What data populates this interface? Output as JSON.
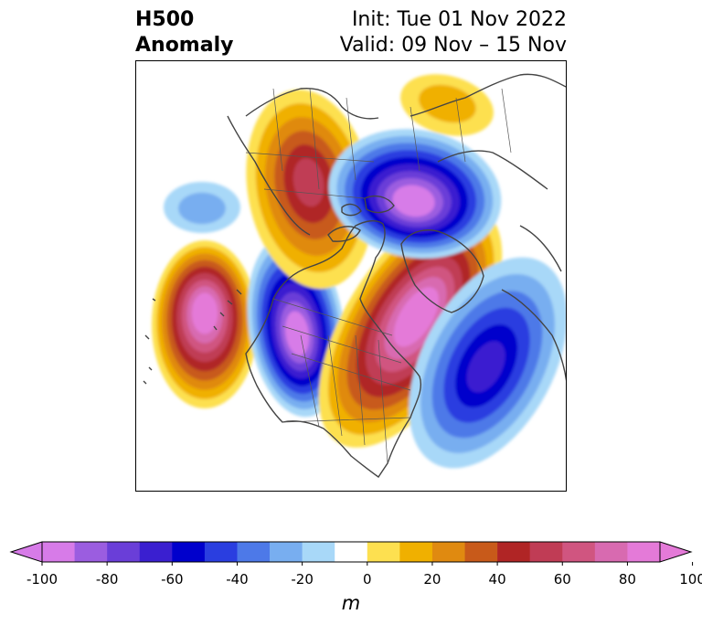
{
  "title": {
    "left_line1": "H500",
    "left_line2": "Anomaly",
    "right_line1": "Init: Tue 01 Nov 2022",
    "right_line2": "Valid: 09 Nov – 15 Nov"
  },
  "colorbar": {
    "unit": "m",
    "ticks": [
      "-100",
      "-80",
      "-60",
      "-40",
      "-20",
      "0",
      "20",
      "40",
      "60",
      "80",
      "100"
    ],
    "colors": [
      "#d77be8",
      "#9b5de0",
      "#6a3ed8",
      "#3a1fd0",
      "#0000cc",
      "#2a3ee0",
      "#4d79e8",
      "#78aef0",
      "#a8d8f8",
      "#ffffff",
      "#fde050",
      "#f0b000",
      "#e08a10",
      "#c85a1a",
      "#b02525",
      "#c03c55",
      "#d05580",
      "#d86ab0",
      "#e47ad8"
    ],
    "under_color": "#d77be8",
    "over_color": "#e47ad8"
  },
  "map": {
    "anomalies": [
      {
        "name": "aleutian-ridge",
        "sign": "positive",
        "peak": 100
      },
      {
        "name": "western-trough",
        "sign": "negative",
        "peak": -100
      },
      {
        "name": "eastern-ridge",
        "sign": "positive",
        "peak": 100
      },
      {
        "name": "atlantic-trough",
        "sign": "negative",
        "peak": -60
      },
      {
        "name": "siberian-ridge",
        "sign": "positive",
        "peak": 60
      },
      {
        "name": "arctic-low",
        "sign": "negative",
        "peak": -100
      },
      {
        "name": "pacific-weak-low",
        "sign": "negative",
        "peak": -20
      },
      {
        "name": "greenland-ridge",
        "sign": "positive",
        "peak": 20
      }
    ]
  }
}
